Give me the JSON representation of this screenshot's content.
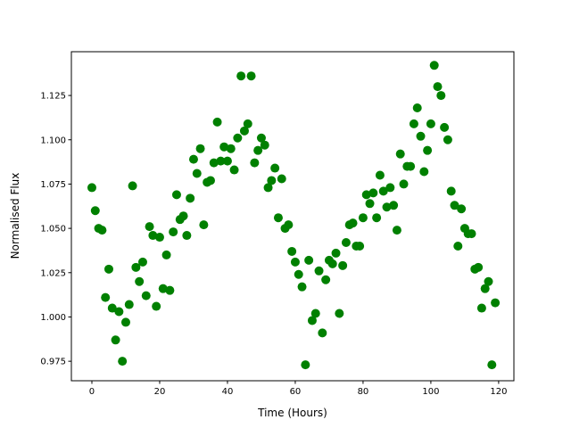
{
  "chart_data": {
    "type": "scatter",
    "title": "",
    "xlabel": "Time (Hours)",
    "ylabel": "Normalised Flux",
    "xlim": [
      -6.05,
      124.5
    ],
    "ylim": [
      0.964,
      1.1497
    ],
    "xticks": [
      0,
      20,
      40,
      60,
      80,
      100,
      120
    ],
    "xtick_labels": [
      "0",
      "20",
      "40",
      "60",
      "80",
      "100",
      "120"
    ],
    "yticks": [
      0.975,
      1.0,
      1.025,
      1.05,
      1.075,
      1.1,
      1.125
    ],
    "ytick_labels": [
      "0.975",
      "1.000",
      "1.025",
      "1.050",
      "1.075",
      "1.100",
      "1.125"
    ],
    "grid": false,
    "color": "#008000",
    "x": [
      0,
      1,
      2,
      3,
      4,
      5,
      6,
      7,
      8,
      9,
      10,
      11,
      12,
      13,
      14,
      15,
      16,
      17,
      18,
      19,
      20,
      21,
      22,
      23,
      24,
      25,
      26,
      27,
      28,
      29,
      30,
      31,
      32,
      33,
      34,
      35,
      36,
      37,
      38,
      39,
      40,
      41,
      42,
      43,
      44,
      45,
      46,
      47,
      48,
      49,
      50,
      51,
      52,
      53,
      54,
      55,
      56,
      57,
      58,
      59,
      60,
      61,
      62,
      63,
      64,
      65,
      66,
      67,
      68,
      69,
      70,
      71,
      72,
      73,
      74,
      75,
      76,
      77,
      78,
      79,
      80,
      81,
      82,
      83,
      84,
      85,
      86,
      87,
      88,
      89,
      90,
      91,
      92,
      93,
      94,
      95,
      96,
      97,
      98,
      99,
      100,
      101,
      102,
      103,
      104,
      105,
      106,
      107,
      108,
      109,
      110,
      111,
      112,
      113,
      114,
      115,
      116,
      117,
      118,
      119
    ],
    "y": [
      1.073,
      1.06,
      1.05,
      1.049,
      1.011,
      1.027,
      1.005,
      0.987,
      1.003,
      0.975,
      0.997,
      1.007,
      1.074,
      1.028,
      1.02,
      1.031,
      1.012,
      1.051,
      1.046,
      1.006,
      1.045,
      1.016,
      1.035,
      1.015,
      1.048,
      1.069,
      1.055,
      1.057,
      1.046,
      1.067,
      1.089,
      1.081,
      1.095,
      1.052,
      1.076,
      1.077,
      1.087,
      1.11,
      1.088,
      1.096,
      1.088,
      1.095,
      1.083,
      1.101,
      1.136,
      1.105,
      1.109,
      1.136,
      1.087,
      1.094,
      1.101,
      1.097,
      1.073,
      1.077,
      1.084,
      1.056,
      1.078,
      1.05,
      1.052,
      1.037,
      1.031,
      1.024,
      1.017,
      0.973,
      1.032,
      0.998,
      1.002,
      1.026,
      0.991,
      1.021,
      1.032,
      1.03,
      1.036,
      1.002,
      1.029,
      1.042,
      1.052,
      1.053,
      1.04,
      1.04,
      1.056,
      1.069,
      1.064,
      1.07,
      1.056,
      1.08,
      1.071,
      1.062,
      1.073,
      1.063,
      1.049,
      1.092,
      1.075,
      1.085,
      1.085,
      1.109,
      1.118,
      1.102,
      1.082,
      1.094,
      1.109,
      1.142,
      1.13,
      1.125,
      1.107,
      1.1,
      1.071,
      1.063,
      1.04,
      1.061,
      1.05,
      1.047,
      1.047,
      1.027,
      1.028,
      1.005,
      1.016,
      1.02,
      0.973,
      1.008
    ]
  }
}
